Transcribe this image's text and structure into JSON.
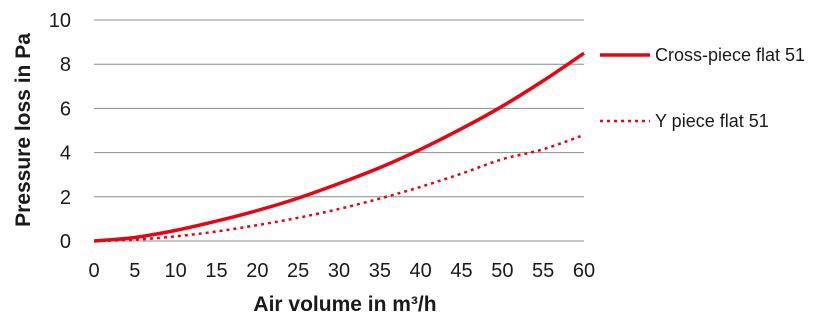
{
  "chart_data": {
    "type": "line",
    "xlabel": "Air volume in m³/h",
    "ylabel": "Pressure loss in Pa",
    "xlim": [
      0,
      60
    ],
    "ylim": [
      0,
      10
    ],
    "x_ticks": [
      "0",
      "5",
      "10",
      "15",
      "20",
      "25",
      "30",
      "35",
      "40",
      "45",
      "50",
      "55",
      "60"
    ],
    "y_ticks": [
      "0",
      "2",
      "4",
      "6",
      "8",
      "10"
    ],
    "grid": "horizontal",
    "legend_position": "right",
    "x": [
      0,
      5,
      10,
      15,
      20,
      25,
      30,
      35,
      40,
      45,
      50,
      55,
      60
    ],
    "series": [
      {
        "name": "Cross-piece flat 51",
        "style": "solid",
        "color": "#e30613",
        "values": [
          0,
          0.16,
          0.48,
          0.9,
          1.38,
          1.94,
          2.6,
          3.32,
          4.15,
          5.08,
          6.1,
          7.25,
          8.5
        ]
      },
      {
        "name": "Y piece flat 51",
        "style": "dotted",
        "color": "#e30613",
        "values": [
          0,
          0.06,
          0.21,
          0.43,
          0.72,
          1.05,
          1.45,
          1.92,
          2.45,
          3.05,
          3.7,
          4.15,
          4.8
        ]
      }
    ]
  }
}
